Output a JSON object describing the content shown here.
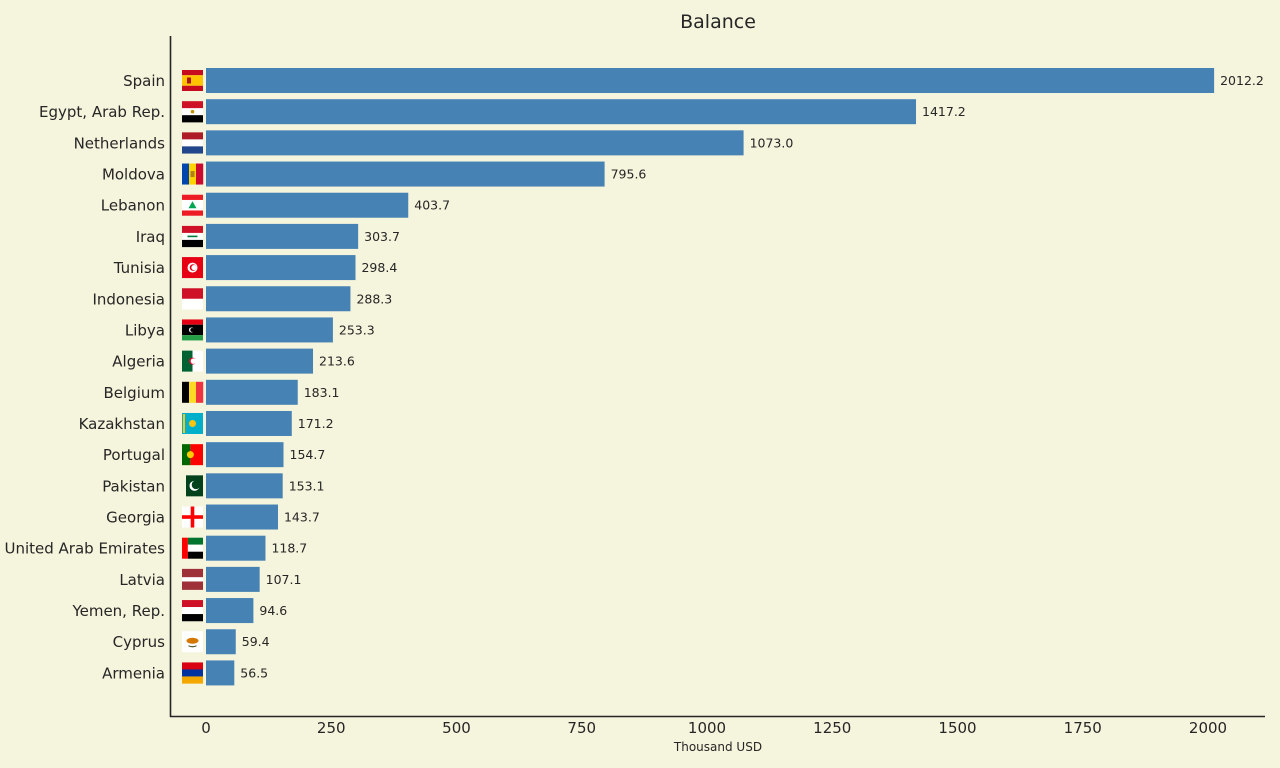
{
  "chart_data": {
    "type": "bar",
    "orientation": "horizontal",
    "title": "Balance",
    "xlabel": "Thousand USD",
    "ylabel": "",
    "xlim": [
      -70,
      2115
    ],
    "xticks": [
      0,
      250,
      500,
      750,
      1000,
      1250,
      1500,
      1750,
      2000
    ],
    "bar_color": "#4682b4",
    "background_color": "#f5f4dc",
    "grid": false,
    "categories": [
      "Spain",
      "Egypt, Arab Rep.",
      "Netherlands",
      "Moldova",
      "Lebanon",
      "Iraq",
      "Tunisia",
      "Indonesia",
      "Libya",
      "Algeria",
      "Belgium",
      "Kazakhstan",
      "Portugal",
      "Pakistan",
      "Georgia",
      "United Arab Emirates",
      "Latvia",
      "Yemen, Rep.",
      "Cyprus",
      "Armenia"
    ],
    "values": [
      2012.2,
      1417.2,
      1073.0,
      795.6,
      403.7,
      303.7,
      298.4,
      288.3,
      253.3,
      213.6,
      183.1,
      171.2,
      154.7,
      153.1,
      143.7,
      118.7,
      107.1,
      94.6,
      59.4,
      56.5
    ],
    "value_labels": [
      "2012.2",
      "1417.2",
      "1073.0",
      "795.6",
      "403.7",
      "303.7",
      "298.4",
      "288.3",
      "253.3",
      "213.6",
      "183.1",
      "171.2",
      "154.7",
      "153.1",
      "143.7",
      "118.7",
      "107.1",
      "94.6",
      "59.4",
      "56.5"
    ],
    "flags": [
      "spain",
      "egypt",
      "netherlands",
      "moldova",
      "lebanon",
      "iraq",
      "tunisia",
      "indonesia",
      "libya",
      "algeria",
      "belgium",
      "kazakhstan",
      "portugal",
      "pakistan",
      "georgia",
      "uae",
      "latvia",
      "yemen",
      "cyprus",
      "armenia"
    ]
  }
}
